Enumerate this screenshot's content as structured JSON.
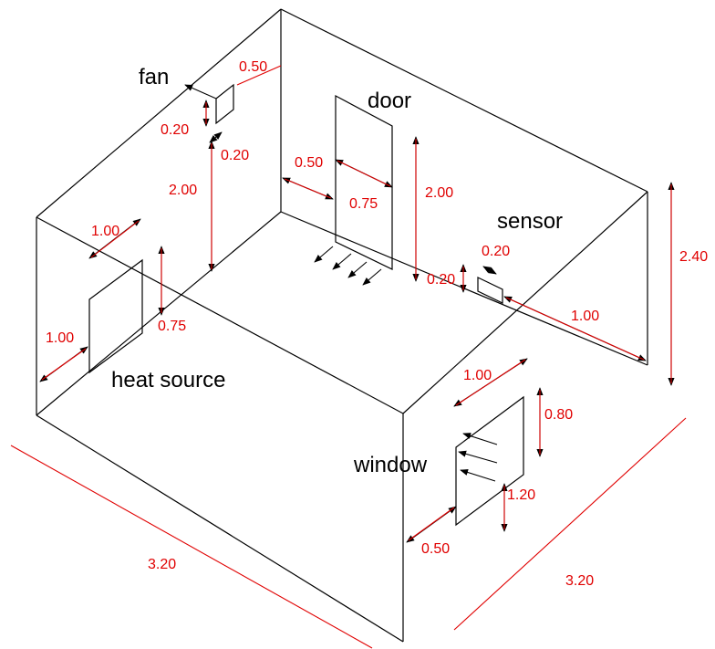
{
  "colors": {
    "outline": "#000000",
    "dimension": "#e00000",
    "background": "#ffffff"
  },
  "objects": {
    "fan": "fan",
    "door": "door",
    "sensor": "sensor",
    "heat_source": "heat source",
    "window": "window"
  },
  "dimensions": {
    "room_length_left": "3.20",
    "room_length_right": "3.20",
    "room_height": "2.40",
    "fan_offset_side": "0.50",
    "fan_height_size": "0.20",
    "fan_depth_size": "0.20",
    "fan_elevation": "2.00",
    "door_offset": "0.50",
    "door_width": "0.75",
    "door_height": "2.00",
    "sensor_width": "0.20",
    "sensor_height": "0.20",
    "sensor_offset": "1.00",
    "heat_source_width": "1.00",
    "heat_source_height": "0.75",
    "heat_source_offset": "1.00",
    "window_width": "1.00",
    "window_height": "0.80",
    "window_sill": "1.20",
    "window_offset": "0.50"
  }
}
